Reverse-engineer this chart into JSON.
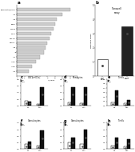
{
  "panel_a": {
    "labels": [
      "Fibronectin/fibrin",
      "IL-2",
      "IL-6",
      "VEGF",
      "M-CSF",
      "CCL2",
      "MIP-1a",
      "CXCL1",
      "IL-8",
      "JE",
      "IL-1",
      "IL-10",
      "IL-1b",
      "IL-4"
    ],
    "values": [
      14,
      12,
      10.5,
      10,
      9.5,
      9,
      8.5,
      8,
      7.5,
      7,
      6,
      5,
      4,
      3
    ],
    "xlabel": "Fold/Ratio/Index",
    "title": "a"
  },
  "panel_b": {
    "title": "b",
    "subtitle": "Transwell\nassay",
    "categories": [
      "aNK",
      "aNKT"
    ],
    "values": [
      1.2,
      3.5
    ],
    "colors": [
      "white",
      "#222222"
    ],
    "ylabel": "Migration index",
    "ylim": [
      0,
      5.0
    ],
    "yticks": [
      0,
      1,
      2,
      3,
      4,
      5
    ]
  },
  "panels_top": [
    {
      "title": "c",
      "subtitle": "CD11c+DCs",
      "categories": [
        "DC",
        "Mac"
      ],
      "legend": [
        "NK",
        "NKT"
      ],
      "values_nk": [
        0.15,
        0.05
      ],
      "values_nkt": [
        0.12,
        0.55
      ],
      "ylim": [
        0,
        0.8
      ],
      "ytick_max": 0.8
    },
    {
      "title": "d",
      "subtitle": "Monocytes",
      "categories": [
        "DC",
        "Mac"
      ],
      "legend": [
        "NK",
        "NKT"
      ],
      "values_nk": [
        0.1,
        0.08
      ],
      "values_nkt": [
        0.55,
        0.55
      ],
      "ylim": [
        0,
        0.8
      ],
      "ytick_max": 0.8
    },
    {
      "title": "e",
      "subtitle": "T cells",
      "categories": [
        "NK",
        "NKT"
      ],
      "legend": [
        "NK",
        "NKT"
      ],
      "values_nk": [
        0.08,
        0.05
      ],
      "values_nkt": [
        0.35,
        0.12
      ],
      "ylim": [
        0,
        0.6
      ],
      "ytick_max": 0.6
    }
  ],
  "panels_bot": [
    {
      "title": "f",
      "subtitle": "Granulocytes",
      "categories": [
        "DC",
        "Mac"
      ],
      "legend": [
        "NK",
        "NKT"
      ],
      "values_nk": [
        0.08,
        0.06
      ],
      "values_nkt": [
        0.12,
        0.28
      ],
      "ylim": [
        0,
        0.4
      ],
      "ytick_max": 0.4
    },
    {
      "title": "g",
      "subtitle": "Granulocytes",
      "categories": [
        "DC",
        "Mac"
      ],
      "legend": [
        "NK",
        "NKT"
      ],
      "values_nk": [
        0.1,
        0.08
      ],
      "values_nkt": [
        0.18,
        0.3
      ],
      "ylim": [
        0,
        0.4
      ],
      "ytick_max": 0.4
    },
    {
      "title": "h",
      "subtitle": "T cells",
      "categories": [
        "NK",
        "NKT"
      ],
      "legend": [
        "NK",
        "NKT"
      ],
      "values_nk": [
        0.06,
        0.04
      ],
      "values_nkt": [
        0.18,
        0.15
      ],
      "ylim": [
        0,
        0.4
      ],
      "ytick_max": 0.4
    }
  ]
}
